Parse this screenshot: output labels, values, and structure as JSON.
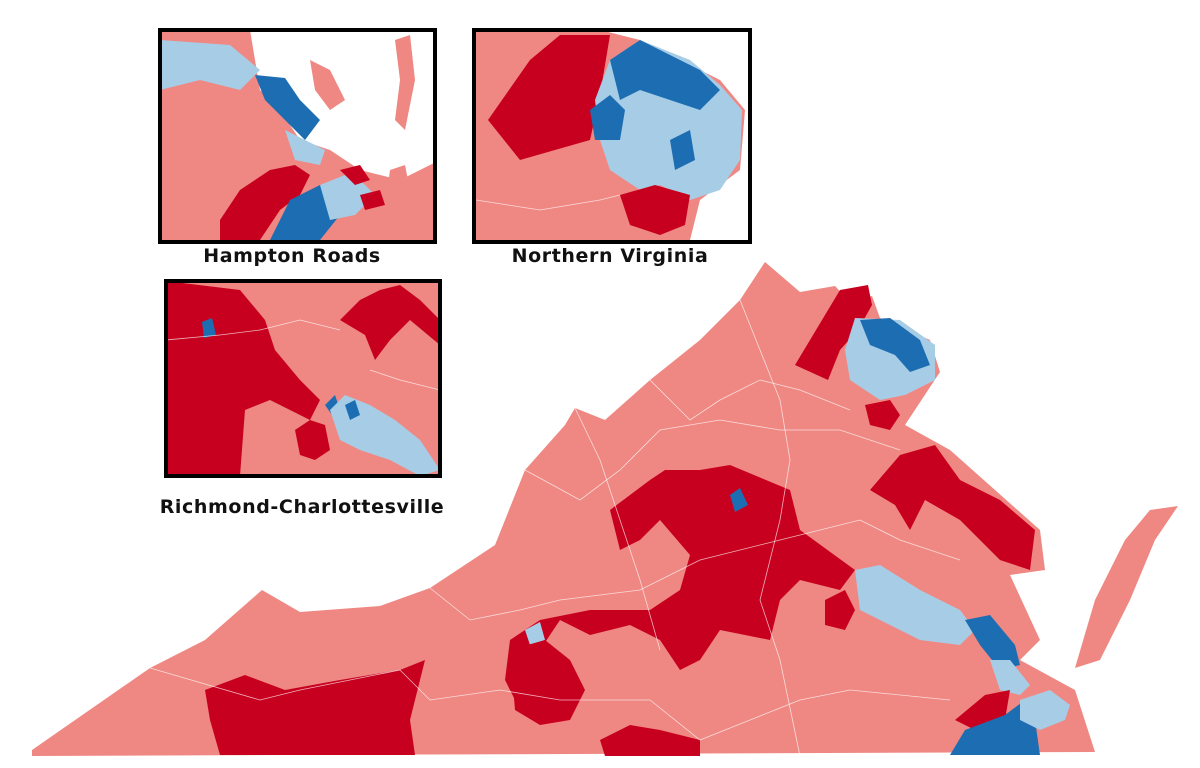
{
  "insets": [
    {
      "label": "Hampton Roads"
    },
    {
      "label": "Northern Virginia"
    },
    {
      "label": "Richmond-Charlottesville"
    }
  ]
}
